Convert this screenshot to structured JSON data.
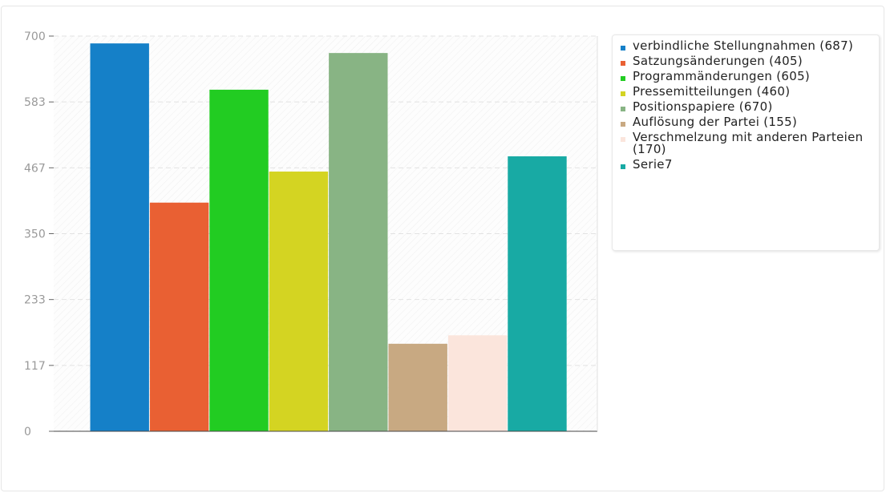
{
  "chart_data": {
    "type": "bar",
    "categories": [
      ""
    ],
    "ylim": [
      0,
      700
    ],
    "yticks": [
      "0",
      "117",
      "233",
      "350",
      "467",
      "583",
      "700"
    ],
    "ytick_values": [
      0,
      116.67,
      233.33,
      350,
      466.67,
      583.33,
      700
    ],
    "grid": true,
    "legend_position": "right",
    "series": [
      {
        "name": "verbindliche Stellungnahmen (687)",
        "value": 687,
        "color": "#1580c8"
      },
      {
        "name": "Satzungsänderungen (405)",
        "value": 405,
        "color": "#e96033"
      },
      {
        "name": "Programmänderungen (605)",
        "value": 605,
        "color": "#22cc22"
      },
      {
        "name": "Pressemitteilungen (460)",
        "value": 460,
        "color": "#d4d422"
      },
      {
        "name": "Positionspapiere (670)",
        "value": 670,
        "color": "#88b484"
      },
      {
        "name": "Auflösung der Partei (155)",
        "value": 155,
        "color": "#c8a982"
      },
      {
        "name": "Verschmelzung mit anderen Parteien (170)",
        "value": 170,
        "color": "#fbe5dc"
      },
      {
        "name": "Serie7",
        "value": 487,
        "color": "#18aaa4"
      }
    ]
  }
}
